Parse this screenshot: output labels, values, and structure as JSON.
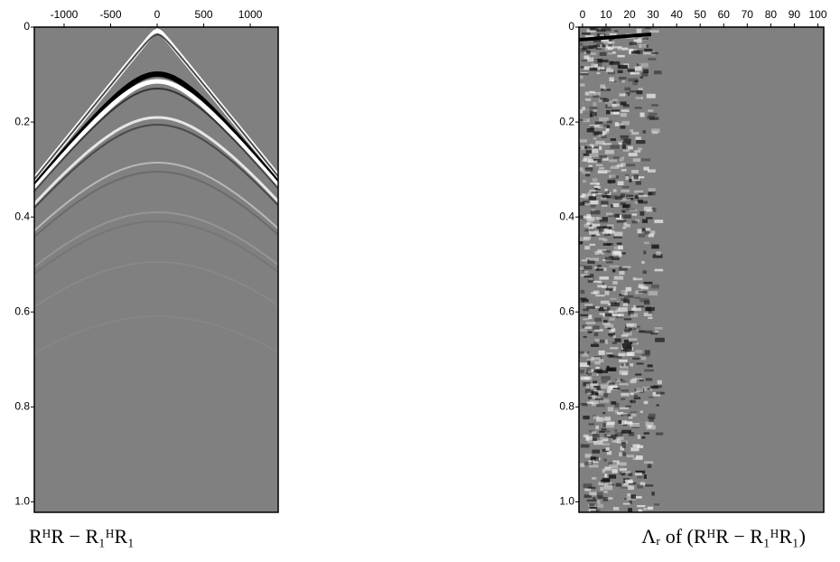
{
  "chart_data": [
    {
      "type": "image",
      "caption": "RᴴR − R₁ᴴR₁",
      "xlim": [
        -1320,
        1300
      ],
      "xticks": [
        -1000,
        -500,
        0,
        500,
        1000
      ],
      "ylim": [
        0,
        1.022
      ],
      "yticks": [
        0,
        0.2,
        0.4,
        0.6,
        0.8,
        {
          "value": 1,
          "label": "1.0"
        }
      ]
    },
    {
      "type": "image",
      "caption": "Λᵣ of (RᴴR − R₁ᴴR₁)",
      "xlim": [
        -1.5,
        102.5
      ],
      "xticks": [
        0,
        10,
        20,
        30,
        40,
        50,
        60,
        70,
        80,
        90,
        100
      ],
      "ylim": [
        0,
        1.022
      ],
      "yticks": [
        0,
        0.2,
        0.4,
        0.6,
        0.8,
        {
          "value": 1,
          "label": "1.0"
        }
      ]
    }
  ]
}
